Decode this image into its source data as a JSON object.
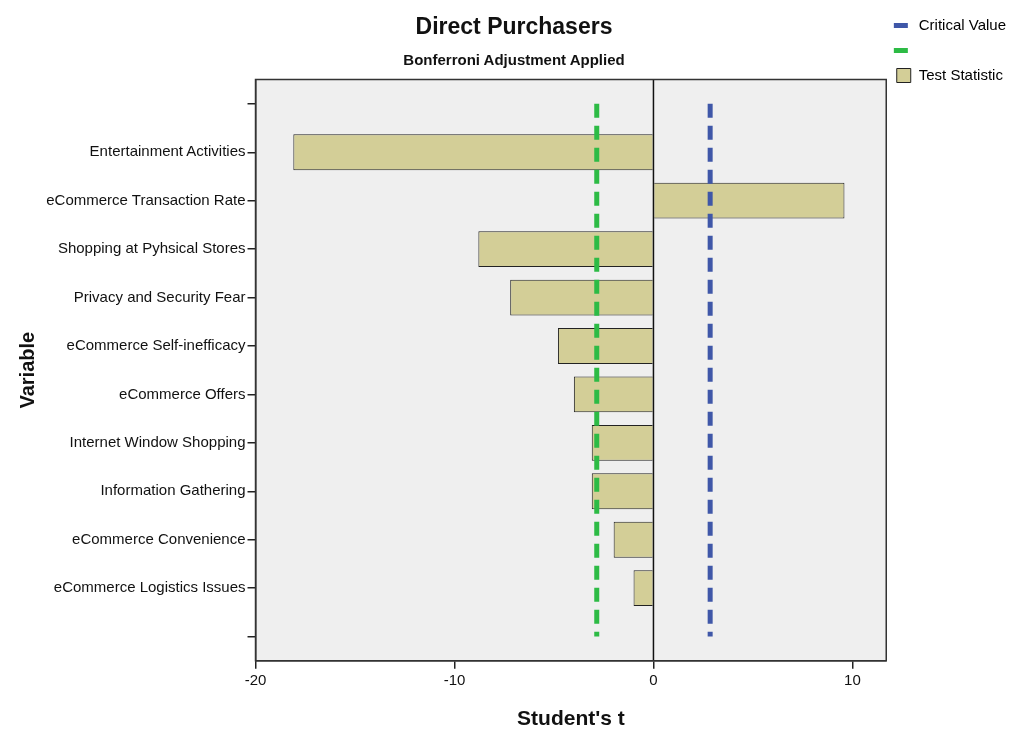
{
  "chart_data": {
    "type": "bar",
    "orientation": "horizontal",
    "title": "Direct Purchasers",
    "subtitle": "Bonferroni Adjustment Applied",
    "xlabel": "Student's t",
    "ylabel": "Variable",
    "categories": [
      null,
      "Entertainment Activities",
      "eCommerce Transaction Rate",
      "Shopping at Pyhsical Stores",
      "Privacy and Security Fear",
      "eCommerce Self-inefficacy",
      "eCommerce Offers",
      "Internet Window Shopping",
      "Information Gathering",
      "eCommerce Convenience",
      "eCommerce Logistics Issues",
      null
    ],
    "series": [
      {
        "name": "Test Statistic",
        "color": "#d3ce97",
        "values": [
          null,
          -18.1,
          9.6,
          -8.8,
          -7.2,
          -4.8,
          -4.0,
          -3.1,
          -3.1,
          -2.0,
          -1.0,
          null
        ]
      }
    ],
    "xlim": [
      -20,
      11.7
    ],
    "xticks": [
      -20,
      -10,
      0,
      10
    ],
    "ref_lines": [
      {
        "axis": "x",
        "value": 2.85,
        "label": "Critical Value",
        "color": "#3f57a8",
        "line_style": "dashed"
      },
      {
        "axis": "x",
        "value": -2.85,
        "color": "#2dbb45",
        "line_style": "dashed"
      },
      {
        "axis": "x",
        "value": 0,
        "color": "#111111",
        "line_style": "solid"
      }
    ],
    "legend": "top right",
    "grid": false
  }
}
